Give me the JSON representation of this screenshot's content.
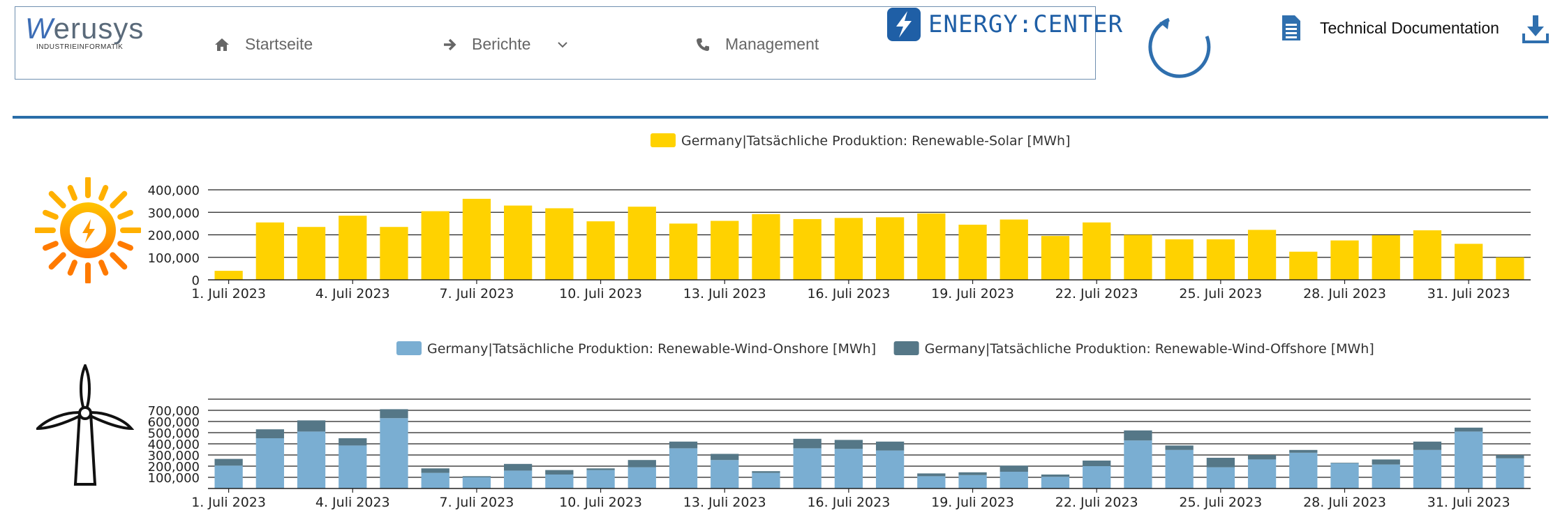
{
  "header": {
    "brand": {
      "name": "werusys",
      "subtitle": "INDUSTRIEINFORMATIK"
    },
    "nav": [
      {
        "label": "Startseite",
        "icon": "home-icon"
      },
      {
        "label": "Berichte",
        "icon": "arrow-right-icon",
        "dropdown": true
      },
      {
        "label": "Management",
        "icon": "phone-icon"
      }
    ],
    "product_logo": "ENERGY:CENTER",
    "tech_doc_label": "Technical Documentation",
    "colors": {
      "accent": "#2a6ea8",
      "solar": "#ffd200",
      "wind_onshore": "#7aaed2",
      "wind_offshore": "#557787"
    }
  },
  "chart_data": [
    {
      "type": "bar",
      "legend": [
        "Germany|Tatsächliche Produktion: Renewable-Solar [MWh]"
      ],
      "x_tick_labels": [
        "1. Juli 2023",
        "4. Juli 2023",
        "7. Juli 2023",
        "10. Juli 2023",
        "13. Juli 2023",
        "16. Juli 2023",
        "19. Juli 2023",
        "22. Juli 2023",
        "25. Juli 2023",
        "28. Juli 2023",
        "31. Juli 2023"
      ],
      "y_ticks": [
        "0",
        "100,000",
        "200,000",
        "300,000",
        "400,000"
      ],
      "ylim": [
        0,
        400000
      ],
      "series": [
        {
          "name": "Germany|Tatsächliche Produktion: Renewable-Solar [MWh]",
          "color": "#ffd200",
          "values": [
            40000,
            255000,
            235000,
            285000,
            235000,
            305000,
            360000,
            330000,
            318000,
            260000,
            325000,
            250000,
            262000,
            292000,
            270000,
            275000,
            278000,
            295000,
            245000,
            268000,
            195000,
            255000,
            200000,
            180000,
            180000,
            222000,
            125000,
            175000,
            198000,
            220000,
            160000,
            100000
          ]
        }
      ]
    },
    {
      "type": "bar",
      "stacked": true,
      "legend": [
        "Germany|Tatsächliche Produktion: Renewable-Wind-Onshore [MWh]",
        "Germany|Tatsächliche Produktion: Renewable-Wind-Offshore [MWh]"
      ],
      "x_tick_labels": [
        "1. Juli 2023",
        "4. Juli 2023",
        "7. Juli 2023",
        "10. Juli 2023",
        "13. Juli 2023",
        "16. Juli 2023",
        "19. Juli 2023",
        "22. Juli 2023",
        "25. Juli 2023",
        "28. Juli 2023",
        "31. Juli 2023"
      ],
      "y_ticks": [
        "100,000",
        "200,000",
        "300,000",
        "400,000",
        "500,000",
        "600,000",
        "700,000"
      ],
      "ylim": [
        0,
        800000
      ],
      "series": [
        {
          "name": "Germany|Tatsächliche Produktion: Renewable-Wind-Onshore [MWh]",
          "color": "#7aaed2",
          "values": [
            205000,
            450000,
            510000,
            385000,
            630000,
            140000,
            100000,
            160000,
            125000,
            165000,
            190000,
            360000,
            255000,
            140000,
            360000,
            355000,
            340000,
            110000,
            120000,
            150000,
            105000,
            200000,
            430000,
            345000,
            190000,
            260000,
            320000,
            225000,
            215000,
            345000,
            510000,
            270000
          ]
        },
        {
          "name": "Germany|Tatsächliche Produktion: Renewable-Wind-Offshore [MWh]",
          "color": "#557787",
          "values": [
            60000,
            80000,
            100000,
            65000,
            80000,
            40000,
            10000,
            60000,
            40000,
            15000,
            65000,
            60000,
            55000,
            15000,
            85000,
            80000,
            80000,
            25000,
            25000,
            55000,
            20000,
            50000,
            90000,
            40000,
            85000,
            40000,
            25000,
            5000,
            45000,
            75000,
            35000,
            30000
          ]
        }
      ]
    }
  ]
}
